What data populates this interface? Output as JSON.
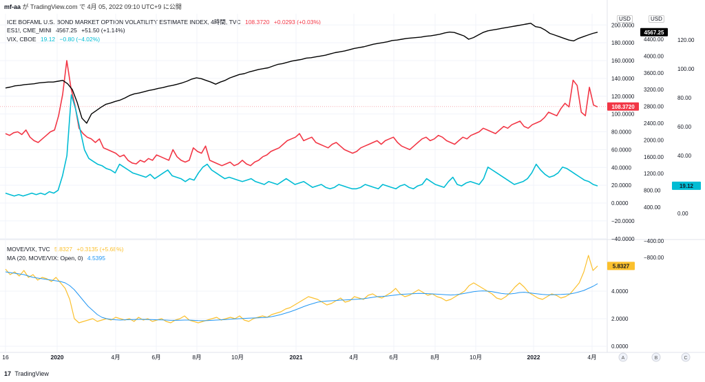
{
  "header": {
    "publisher": "mf-aa",
    "published_text": "が TradingView.com で 4月 05, 2022 09:10 UTC+9 に公開"
  },
  "legends": {
    "move": {
      "name": "ICE BOFAML U.S. BOND MARKET OPTION VOLATILITY ESTIMATE INDEX, 4時間, TVC",
      "value": "108.3720",
      "change": "+0.0293 (+0.03%)"
    },
    "es": {
      "name": "ES1!, CME_MINI",
      "value": "4567.25",
      "change": "+51.50 (+1.14%)"
    },
    "vix": {
      "name": "VIX, CBOE",
      "value": "19.12",
      "change": "−0.80 (−4.02%)"
    },
    "ratio": {
      "name": "MOVE/VIX, TVC",
      "value": "5.8327",
      "change": "+0.3135 (+5.68%)"
    },
    "ma": {
      "name": "MA (20, MOVE/VIX: Open, 0)",
      "value": "4.5395"
    }
  },
  "currency_labels": [
    "USD",
    "USD"
  ],
  "footer": {
    "brand": "TradingView"
  },
  "pane_buttons": [
    "A",
    "B",
    "C"
  ],
  "colors": {
    "move": "#f23645",
    "es": "#000000",
    "vix": "#00bcd4",
    "ratio": "#fbc02d",
    "ma": "#2196f3",
    "grid": "#f0f3fa",
    "price_tag_es": "#000000"
  },
  "chart_data": [
    {
      "type": "line",
      "title": "",
      "x_ticks": [
        "16",
        "2020",
        "4月",
        "6月",
        "8月",
        "10月",
        "2021",
        "4月",
        "6月",
        "8月",
        "10月",
        "2022",
        "4月"
      ],
      "grid": true,
      "axes": {
        "move_axis": {
          "ticks": [
            "200.0000",
            "180.0000",
            "160.0000",
            "140.0000",
            "120.0000",
            "100.0000",
            "80.0000",
            "60.0000",
            "40.0000",
            "20.0000",
            "0.0000",
            "−20.0000",
            "−40.0000"
          ],
          "range": [
            -40,
            200
          ]
        },
        "es_axis": {
          "ticks": [
            "4400.00",
            "4000.00",
            "3600.00",
            "3200.00",
            "2800.00",
            "2400.00",
            "2000.00",
            "1600.00",
            "1200.00",
            "800.00",
            "400.00",
            "−400.00",
            "−800.00"
          ],
          "range": [
            -800,
            4800
          ]
        },
        "vix_axis": {
          "ticks": [
            "120.00",
            "100.00",
            "80.00",
            "60.00",
            "40.00",
            "20.00",
            "0.00"
          ],
          "range": [
            -20,
            130
          ]
        }
      },
      "series": [
        {
          "name": "ICE BOFAML U.S. BOND MARKET OPTION VOLATILITY ESTIMATE INDEX",
          "axis": "move_axis",
          "values": [
            78,
            76,
            79,
            80,
            77,
            82,
            74,
            70,
            68,
            72,
            76,
            80,
            82,
            98,
            122,
            160,
            130,
            110,
            84,
            78,
            74,
            72,
            68,
            72,
            62,
            60,
            58,
            56,
            52,
            54,
            48,
            45,
            44,
            48,
            46,
            50,
            48,
            54,
            52,
            50,
            48,
            60,
            52,
            48,
            46,
            48,
            62,
            58,
            56,
            64,
            48,
            46,
            44,
            42,
            44,
            46,
            42,
            44,
            48,
            44,
            42,
            46,
            48,
            52,
            54,
            58,
            60,
            62,
            66,
            70,
            72,
            74,
            78,
            70,
            72,
            74,
            68,
            66,
            64,
            62,
            66,
            68,
            64,
            60,
            58,
            56,
            58,
            62,
            64,
            66,
            68,
            70,
            66,
            70,
            72,
            74,
            68,
            64,
            62,
            60,
            64,
            68,
            72,
            74,
            70,
            72,
            76,
            74,
            70,
            68,
            66,
            70,
            74,
            72,
            76,
            78,
            80,
            84,
            82,
            80,
            78,
            82,
            86,
            84,
            88,
            90,
            92,
            86,
            84,
            88,
            90,
            92,
            96,
            102,
            100,
            98,
            106,
            112,
            108,
            138,
            132,
            102,
            98,
            130,
            110,
            108
          ]
        },
        {
          "name": "ES1!, CME_MINI",
          "axis": "es_axis",
          "values": [
            3240,
            3260,
            3290,
            3300,
            3320,
            3330,
            3340,
            3360,
            3370,
            3380,
            3380,
            3400,
            3420,
            3340,
            3200,
            2900,
            2520,
            2400,
            2620,
            2700,
            2780,
            2850,
            2880,
            2920,
            2950,
            3000,
            3060,
            3100,
            3120,
            3150,
            3180,
            3200,
            3230,
            3250,
            3280,
            3300,
            3330,
            3360,
            3400,
            3450,
            3480,
            3460,
            3420,
            3380,
            3330,
            3380,
            3420,
            3480,
            3520,
            3560,
            3580,
            3620,
            3650,
            3680,
            3700,
            3720,
            3760,
            3800,
            3820,
            3850,
            3880,
            3900,
            3920,
            3950,
            3960,
            3980,
            4000,
            4020,
            4050,
            4080,
            4100,
            4120,
            4150,
            4180,
            4200,
            4220,
            4250,
            4280,
            4300,
            4320,
            4340,
            4370,
            4380,
            4400,
            4420,
            4430,
            4440,
            4450,
            4470,
            4480,
            4500,
            4520,
            4550,
            4570,
            4560,
            4520,
            4480,
            4400,
            4440,
            4500,
            4560,
            4600,
            4620,
            4640,
            4660,
            4680,
            4700,
            4720,
            4740,
            4760,
            4780,
            4700,
            4680,
            4620,
            4540,
            4500,
            4460,
            4420,
            4380,
            4360,
            4420,
            4460,
            4500,
            4540,
            4567
          ]
        },
        {
          "name": "VIX, CBOE",
          "axis": "vix_axis",
          "values": [
            14,
            13,
            12,
            13,
            12,
            13,
            14,
            13,
            14,
            13,
            15,
            14,
            16,
            26,
            40,
            82,
            72,
            58,
            44,
            38,
            36,
            34,
            33,
            31,
            30,
            28,
            34,
            32,
            30,
            28,
            27,
            26,
            25,
            27,
            24,
            26,
            28,
            30,
            26,
            25,
            24,
            22,
            24,
            23,
            28,
            32,
            34,
            30,
            28,
            26,
            24,
            25,
            24,
            23,
            22,
            23,
            24,
            22,
            21,
            20,
            22,
            21,
            20,
            22,
            24,
            22,
            20,
            21,
            22,
            20,
            18,
            19,
            20,
            18,
            17,
            18,
            20,
            19,
            18,
            17,
            17,
            18,
            20,
            19,
            18,
            17,
            20,
            19,
            18,
            17,
            19,
            20,
            18,
            17,
            19,
            20,
            24,
            22,
            20,
            19,
            18,
            22,
            25,
            20,
            19,
            21,
            22,
            21,
            20,
            24,
            32,
            30,
            28,
            26,
            24,
            22,
            20,
            21,
            22,
            24,
            28,
            34,
            30,
            27,
            25,
            26,
            28,
            32,
            31,
            29,
            27,
            25,
            23,
            22,
            20,
            19
          ]
        },
        {
          "name": "MOVE/VIX",
          "axis": "ratio_axis",
          "values": [
            5.6,
            5.2,
            5.4,
            5.1,
            5.5,
            5.0,
            5.2,
            4.8,
            5.0,
            4.9,
            4.7,
            5.0,
            4.6,
            4.2,
            3.4,
            2.0,
            1.7,
            1.8,
            1.9,
            2.0,
            1.8,
            1.9,
            2.0,
            1.9,
            2.1,
            2.0,
            1.9,
            2.0,
            1.8,
            2.1,
            1.9,
            2.0,
            1.8,
            1.9,
            2.0,
            1.8,
            1.7,
            1.9,
            2.0,
            2.2,
            1.9,
            1.8,
            1.7,
            1.8,
            1.9,
            2.0,
            2.1,
            1.9,
            2.0,
            2.1,
            2.0,
            2.2,
            1.9,
            1.8,
            2.0,
            2.1,
            2.2,
            2.1,
            2.3,
            2.4,
            2.5,
            2.7,
            2.8,
            3.0,
            3.2,
            3.4,
            3.6,
            3.5,
            3.4,
            3.2,
            3.0,
            3.1,
            3.3,
            3.5,
            3.2,
            3.3,
            3.6,
            3.5,
            3.4,
            3.7,
            3.8,
            3.6,
            3.5,
            3.7,
            3.9,
            4.2,
            3.8,
            3.6,
            3.7,
            3.9,
            4.1,
            3.9,
            3.7,
            3.8,
            3.6,
            3.5,
            3.3,
            3.4,
            3.6,
            3.8,
            4.0,
            4.4,
            4.6,
            4.4,
            4.2,
            4.0,
            3.8,
            3.5,
            3.4,
            3.6,
            3.9,
            4.3,
            4.6,
            4.3,
            3.9,
            3.7,
            3.5,
            3.4,
            3.6,
            3.8,
            3.7,
            3.5,
            3.6,
            3.8,
            4.2,
            4.6,
            5.4,
            6.6,
            5.5,
            5.83
          ]
        },
        {
          "name": "MA (20, MOVE/VIX: Open, 0)",
          "axis": "ratio_axis",
          "values": [
            5.4,
            5.35,
            5.3,
            5.25,
            5.2,
            5.1,
            5.0,
            4.95,
            4.9,
            4.85,
            4.8,
            4.75,
            4.7,
            4.6,
            4.4,
            4.1,
            3.7,
            3.3,
            2.9,
            2.6,
            2.3,
            2.1,
            2.0,
            1.95,
            1.92,
            1.9,
            1.92,
            1.93,
            1.94,
            1.95,
            1.95,
            1.94,
            1.93,
            1.92,
            1.91,
            1.9,
            1.88,
            1.88,
            1.89,
            1.9,
            1.9,
            1.88,
            1.86,
            1.85,
            1.86,
            1.88,
            1.9,
            1.92,
            1.94,
            1.96,
            1.98,
            2.0,
            2.02,
            2.04,
            2.05,
            2.06,
            2.08,
            2.1,
            2.15,
            2.22,
            2.3,
            2.4,
            2.5,
            2.62,
            2.75,
            2.88,
            3.0,
            3.1,
            3.2,
            3.25,
            3.28,
            3.3,
            3.32,
            3.35,
            3.36,
            3.38,
            3.4,
            3.42,
            3.45,
            3.5,
            3.55,
            3.6,
            3.62,
            3.64,
            3.68,
            3.72,
            3.76,
            3.78,
            3.8,
            3.82,
            3.84,
            3.83,
            3.82,
            3.8,
            3.78,
            3.76,
            3.74,
            3.72,
            3.74,
            3.78,
            3.84,
            3.9,
            3.96,
            4.0,
            4.02,
            4.0,
            3.96,
            3.9,
            3.84,
            3.8,
            3.8,
            3.84,
            3.9,
            3.92,
            3.88,
            3.84,
            3.8,
            3.76,
            3.74,
            3.74,
            3.75,
            3.76,
            3.78,
            3.8,
            3.86,
            3.95,
            4.05,
            4.2,
            4.35,
            4.54
          ]
        }
      ]
    },
    {
      "type": "line",
      "title": "",
      "axes": {
        "ratio_axis": {
          "ticks": [
            "4.0000",
            "2.0000",
            "0.0000"
          ],
          "range": [
            -0.2,
            7.0
          ]
        }
      },
      "current_values": {
        "MOVE/VIX": "5.8327"
      }
    }
  ]
}
